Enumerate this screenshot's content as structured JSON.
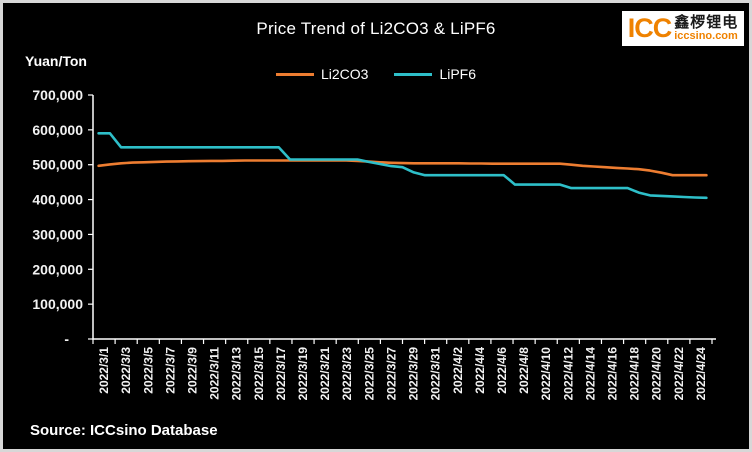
{
  "window": {
    "background": "#000000",
    "border_color": "#d7d7d7",
    "text_color": "#ffffff"
  },
  "header": {
    "title": "Price Trend of Li2CO3 & LiPF6",
    "y_axis_unit": "Yuan/Ton"
  },
  "logo": {
    "icc": "ICC",
    "chinese": "鑫椤锂电",
    "website": "iccsino.com",
    "orange": "#ef8200"
  },
  "legend": [
    {
      "label": "Li2CO3",
      "color": "#ED7D31"
    },
    {
      "label": "LiPF6",
      "color": "#2EBFC9"
    }
  ],
  "footer": {
    "source": "Source: ICCsino Database"
  },
  "chart_data": {
    "type": "line",
    "title": "Price Trend of Li2CO3 & LiPF6",
    "ylabel": "Yuan/Ton",
    "ylim": [
      0,
      700000
    ],
    "ytick_step": 100000,
    "ytick_labels_top_down": [
      "700,000",
      "600,000",
      "500,000",
      "400,000",
      "300,000",
      "200,000",
      "100,000",
      "-"
    ],
    "grid": false,
    "legend_position": "top",
    "xtick_label_every": 2,
    "x": [
      "2022/3/1",
      "2022/3/2",
      "2022/3/3",
      "2022/3/4",
      "2022/3/5",
      "2022/3/6",
      "2022/3/7",
      "2022/3/8",
      "2022/3/9",
      "2022/3/10",
      "2022/3/11",
      "2022/3/12",
      "2022/3/13",
      "2022/3/14",
      "2022/3/15",
      "2022/3/16",
      "2022/3/17",
      "2022/3/18",
      "2022/3/19",
      "2022/3/20",
      "2022/3/21",
      "2022/3/22",
      "2022/3/23",
      "2022/3/24",
      "2022/3/25",
      "2022/3/26",
      "2022/3/27",
      "2022/3/28",
      "2022/3/29",
      "2022/3/30",
      "2022/3/31",
      "2022/4/1",
      "2022/4/2",
      "2022/4/3",
      "2022/4/4",
      "2022/4/5",
      "2022/4/6",
      "2022/4/7",
      "2022/4/8",
      "2022/4/9",
      "2022/4/10",
      "2022/4/11",
      "2022/4/12",
      "2022/4/13",
      "2022/4/14",
      "2022/4/15",
      "2022/4/16",
      "2022/4/17",
      "2022/4/18",
      "2022/4/19",
      "2022/4/20",
      "2022/4/21",
      "2022/4/22",
      "2022/4/23",
      "2022/4/24"
    ],
    "series": [
      {
        "name": "Li2CO3",
        "color": "#ED7D31",
        "values": [
          497000,
          501000,
          504000,
          506000,
          507000,
          508000,
          509000,
          509500,
          510000,
          510500,
          511000,
          511000,
          511500,
          512000,
          512000,
          512000,
          512000,
          512000,
          512000,
          512000,
          512000,
          512000,
          512000,
          511000,
          509000,
          507000,
          505500,
          504500,
          504000,
          504000,
          504000,
          504000,
          504000,
          503500,
          503500,
          503000,
          503000,
          503000,
          503000,
          503000,
          503000,
          503000,
          500000,
          497000,
          495000,
          493000,
          491000,
          489000,
          487000,
          483000,
          477000,
          470000,
          470000,
          470000,
          470000
        ]
      },
      {
        "name": "LiPF6",
        "color": "#2EBFC9",
        "values": [
          590000,
          590000,
          550000,
          550000,
          550000,
          550000,
          550000,
          550000,
          550000,
          550000,
          550000,
          550000,
          550000,
          550000,
          550000,
          550000,
          550000,
          515000,
          515000,
          515000,
          515000,
          515000,
          515000,
          515000,
          508000,
          502000,
          496000,
          493000,
          478000,
          470000,
          470000,
          470000,
          470000,
          470000,
          470000,
          470000,
          470000,
          443000,
          443000,
          443000,
          443000,
          443000,
          433000,
          433000,
          433000,
          433000,
          433000,
          433000,
          420000,
          412000,
          410500,
          409000,
          407500,
          406000,
          405000
        ]
      }
    ]
  }
}
